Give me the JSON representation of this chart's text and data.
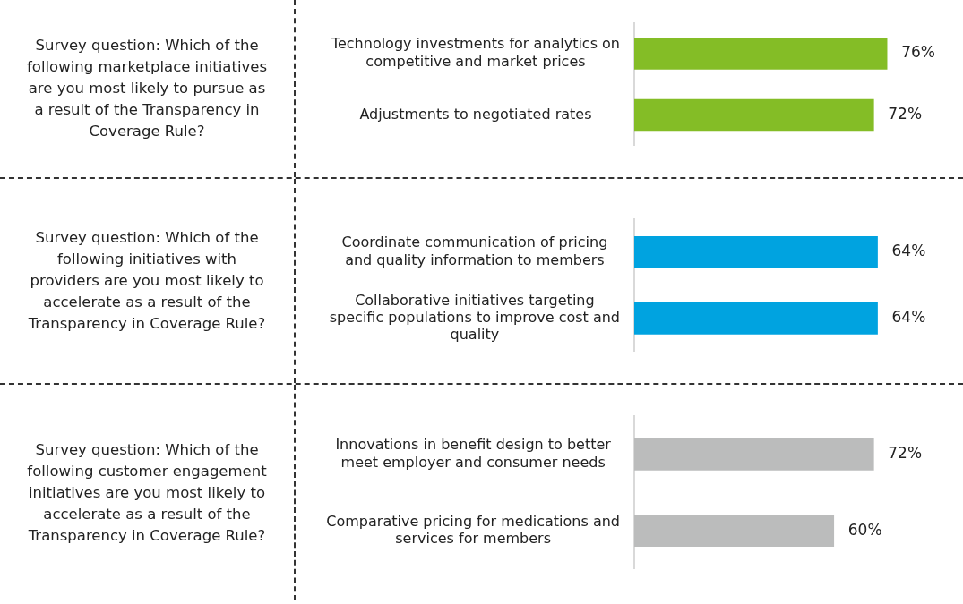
{
  "chart_data": [
    {
      "type": "bar",
      "orientation": "horizontal",
      "title": "Survey question: Which of the following marketplace initiatives are you most likely to pursue as a result of the Transparency in Coverage Rule?",
      "categories": [
        "Technology investments for analytics on competitive and market prices",
        "Adjustments to negotiated rates"
      ],
      "values": [
        76,
        72
      ],
      "value_labels": [
        "76%",
        "72%"
      ],
      "color": "#84bd26",
      "tick_labels": "y"
    },
    {
      "type": "bar",
      "orientation": "horizontal",
      "title": "Survey question: Which of the following initiatives with providers are you most likely to accelerate as a result of the Transparency in Coverage Rule?",
      "categories": [
        "Coordinate communication of pricing and quality information to members",
        "Collaborative initiatives targeting specific populations to improve cost and quality"
      ],
      "values": [
        64,
        64
      ],
      "value_labels": [
        "64%",
        "64%"
      ],
      "color": "#00a3e0",
      "tick_labels": "y"
    },
    {
      "type": "bar",
      "orientation": "horizontal",
      "title": "Survey question: Which of the following customer engagement initiatives are you most likely to accelerate as a result of the Transparency in Coverage Rule?",
      "categories": [
        "Innovations in benefit design to better meet employer and consumer needs",
        "Comparative pricing for medications and services for members"
      ],
      "values": [
        72,
        60
      ],
      "value_labels": [
        "72%",
        "60%"
      ],
      "color": "#bbbcbc",
      "tick_labels": "y"
    }
  ]
}
